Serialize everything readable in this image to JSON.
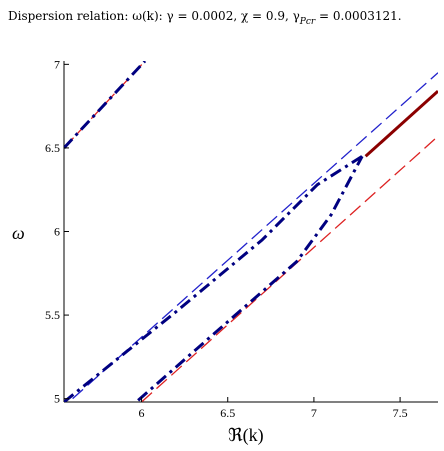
{
  "chart_data": {
    "type": "line",
    "title": "Dispersion relation: ω(k): γ = 0.0002, χ = 0.9, γPcr = 0.0003121.",
    "xlabel": "ℜ(k)",
    "ylabel": "ω",
    "xlim": [
      5.55,
      7.72
    ],
    "ylim": [
      4.98,
      7.02
    ],
    "x_ticks": [
      6,
      6.5,
      7,
      7.5
    ],
    "x_tick_labels": [
      "6",
      "6.5",
      "7",
      "7.5"
    ],
    "y_ticks": [
      5,
      5.5,
      6,
      6.5,
      7
    ],
    "y_tick_labels": [
      "5",
      "5.5",
      "6",
      "6.5",
      "7"
    ],
    "grid": false,
    "series": [
      {
        "style": "dashed",
        "color": "#2222cc",
        "x": [
          5.6,
          7.72
        ],
        "y": [
          5.0,
          6.95
        ]
      },
      {
        "style": "dashed",
        "color": "#dd2222",
        "x": [
          6.0,
          7.72
        ],
        "y": [
          4.98,
          6.57
        ]
      },
      {
        "style": "dashed",
        "color": "#dd2222",
        "x": [
          5.55,
          6.02
        ],
        "y": [
          6.5,
          7.02
        ]
      },
      {
        "style": "solid",
        "color": "#8b0000",
        "x": [
          7.3,
          7.72
        ],
        "y": [
          6.45,
          6.84
        ]
      },
      {
        "style": "dashdot",
        "color": "#000080",
        "x": [
          5.55,
          6.02
        ],
        "y": [
          6.5,
          7.02
        ]
      },
      {
        "style": "dashdot",
        "color": "#000080",
        "x": [
          5.55,
          6.2,
          6.7,
          7.02,
          7.28
        ],
        "y": [
          4.98,
          5.52,
          5.95,
          6.28,
          6.45
        ]
      },
      {
        "style": "dashdot",
        "color": "#000080",
        "x": [
          5.98,
          6.4,
          6.9,
          7.1,
          7.28
        ],
        "y": [
          4.99,
          5.37,
          5.82,
          6.1,
          6.45
        ]
      }
    ]
  }
}
